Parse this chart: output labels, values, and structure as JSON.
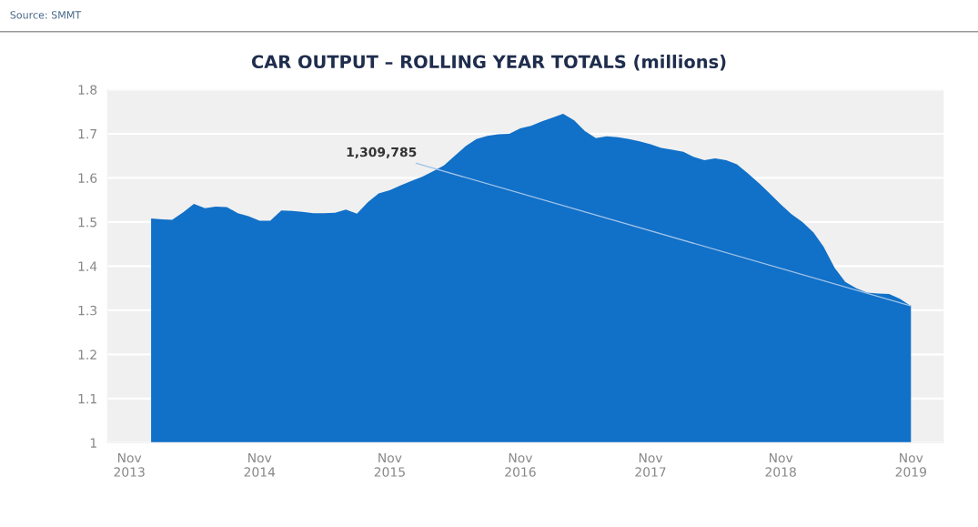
{
  "chart_data": {
    "type": "area",
    "title": "CAR OUTPUT – ROLLING YEAR TOTALS (millions)",
    "x": [
      "2014-01",
      "2014-02",
      "2014-03",
      "2014-04",
      "2014-05",
      "2014-06",
      "2014-07",
      "2014-08",
      "2014-09",
      "2014-10",
      "2014-11",
      "2014-12",
      "2015-01",
      "2015-02",
      "2015-03",
      "2015-04",
      "2015-05",
      "2015-06",
      "2015-07",
      "2015-08",
      "2015-09",
      "2015-10",
      "2015-11",
      "2015-12",
      "2016-01",
      "2016-02",
      "2016-03",
      "2016-04",
      "2016-05",
      "2016-06",
      "2016-07",
      "2016-08",
      "2016-09",
      "2016-10",
      "2016-11",
      "2016-12",
      "2017-01",
      "2017-02",
      "2017-03",
      "2017-04",
      "2017-05",
      "2017-06",
      "2017-07",
      "2017-08",
      "2017-09",
      "2017-10",
      "2017-11",
      "2017-12",
      "2018-01",
      "2018-02",
      "2018-03",
      "2018-04",
      "2018-05",
      "2018-06",
      "2018-07",
      "2018-08",
      "2018-09",
      "2018-10",
      "2018-11",
      "2018-12",
      "2019-01",
      "2019-02",
      "2019-03",
      "2019-04",
      "2019-05",
      "2019-06",
      "2019-07",
      "2019-08",
      "2019-09",
      "2019-10",
      "2019-11"
    ],
    "series": [
      {
        "color": "#1170c8",
        "values": [
          1.508,
          1.506,
          1.505,
          1.522,
          1.541,
          1.531,
          1.535,
          1.534,
          1.52,
          1.513,
          1.503,
          1.503,
          1.526,
          1.525,
          1.523,
          1.52,
          1.52,
          1.521,
          1.528,
          1.519,
          1.545,
          1.565,
          1.572,
          1.583,
          1.593,
          1.603,
          1.615,
          1.628,
          1.65,
          1.672,
          1.688,
          1.695,
          1.699,
          1.7,
          1.712,
          1.718,
          1.728,
          1.737,
          1.745,
          1.73,
          1.706,
          1.69,
          1.694,
          1.692,
          1.688,
          1.683,
          1.676,
          1.668,
          1.664,
          1.659,
          1.648,
          1.64,
          1.644,
          1.64,
          1.631,
          1.61,
          1.588,
          1.565,
          1.54,
          1.518,
          1.5,
          1.476,
          1.444,
          1.396,
          1.364,
          1.35,
          1.34,
          1.338,
          1.337,
          1.326,
          1.309785
        ]
      }
    ],
    "xlim": [
      "2013-09",
      "2020-02"
    ],
    "xticks": [
      {
        "value": "2013-11",
        "label": "Nov\n2013"
      },
      {
        "value": "2014-11",
        "label": "Nov\n2014"
      },
      {
        "value": "2015-11",
        "label": "Nov\n2015"
      },
      {
        "value": "2016-11",
        "label": "Nov\n2016"
      },
      {
        "value": "2017-11",
        "label": "Nov\n2017"
      },
      {
        "value": "2018-11",
        "label": "Nov\n2018"
      },
      {
        "value": "2019-11",
        "label": "Nov\n2019"
      }
    ],
    "ylim": [
      1,
      1.8
    ],
    "yticks": [
      1,
      1.1,
      1.2,
      1.3,
      1.4,
      1.5,
      1.6,
      1.7,
      1.8
    ],
    "grid": "y",
    "annotations": [
      "Source: SMMT",
      {
        "text": "1,309,785",
        "x": "2019-11",
        "y": 1.309785
      }
    ]
  }
}
